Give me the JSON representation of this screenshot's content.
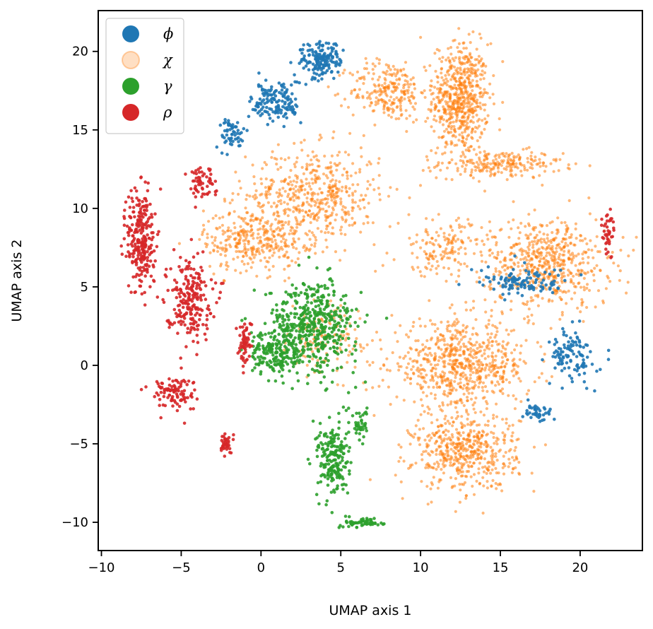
{
  "chart_data": {
    "type": "scatter",
    "xlabel": "UMAP axis 1",
    "ylabel": "UMAP axis 2",
    "xlim": [
      -10.2,
      23.9
    ],
    "ylim": [
      -11.8,
      22.6
    ],
    "xticks": [
      -10,
      -5,
      0,
      5,
      10,
      15,
      20
    ],
    "yticks": [
      -10,
      -5,
      0,
      5,
      10,
      15,
      20
    ],
    "xtick_labels": [
      "−10",
      "−5",
      "0",
      "5",
      "10",
      "15",
      "20"
    ],
    "ytick_labels": [
      "−10",
      "−5",
      "0",
      "5",
      "10",
      "15",
      "20"
    ],
    "grid": false,
    "legend": {
      "placement": "top-left"
    },
    "series": [
      {
        "name": "ϕ",
        "color": "#1f77b4",
        "clusters": [
          {
            "center": [
              3.8,
              19.4
            ],
            "spread": [
              1.2,
              1.1
            ],
            "points": 160
          },
          {
            "center": [
              1.0,
              16.8
            ],
            "spread": [
              1.4,
              1.3
            ],
            "points": 150
          },
          {
            "center": [
              -1.8,
              14.8
            ],
            "spread": [
              0.8,
              0.9
            ],
            "points": 60
          },
          {
            "center": [
              16.5,
              5.3
            ],
            "spread": [
              2.5,
              0.8
            ],
            "points": 110
          },
          {
            "center": [
              19.5,
              0.5
            ],
            "spread": [
              1.3,
              1.6
            ],
            "points": 110
          },
          {
            "center": [
              17.2,
              -3.0
            ],
            "spread": [
              1.0,
              0.5
            ],
            "points": 40
          }
        ]
      },
      {
        "name": "χ",
        "color": "#ff7f0e",
        "clusters": [
          {
            "center": [
              12.5,
              17.0
            ],
            "spread": [
              1.6,
              3.2
            ],
            "points": 600
          },
          {
            "center": [
              15.0,
              12.8
            ],
            "spread": [
              3.5,
              0.8
            ],
            "points": 220
          },
          {
            "center": [
              8.0,
              17.5
            ],
            "spread": [
              2.2,
              1.8
            ],
            "points": 240
          },
          {
            "center": [
              3.3,
              10.8
            ],
            "spread": [
              3.8,
              2.8
            ],
            "points": 520
          },
          {
            "center": [
              -0.5,
              8.0
            ],
            "spread": [
              2.8,
              1.8
            ],
            "points": 320
          },
          {
            "center": [
              18.0,
              6.5
            ],
            "spread": [
              3.5,
              2.6
            ],
            "points": 560
          },
          {
            "center": [
              11.5,
              7.5
            ],
            "spread": [
              2.6,
              1.6
            ],
            "points": 160
          },
          {
            "center": [
              12.5,
              0.0
            ],
            "spread": [
              4.0,
              2.5
            ],
            "points": 700
          },
          {
            "center": [
              12.8,
              -5.5
            ],
            "spread": [
              3.0,
              2.2
            ],
            "points": 500
          },
          {
            "center": [
              4.0,
              1.5
            ],
            "spread": [
              2.0,
              2.0
            ],
            "points": 120
          }
        ]
      },
      {
        "name": "γ",
        "color": "#2ca02c",
        "clusters": [
          {
            "center": [
              3.2,
              2.5
            ],
            "spread": [
              2.6,
              2.6
            ],
            "points": 500
          },
          {
            "center": [
              0.8,
              0.8
            ],
            "spread": [
              1.4,
              1.2
            ],
            "points": 160
          },
          {
            "center": [
              4.5,
              -6.0
            ],
            "spread": [
              0.9,
              2.2
            ],
            "points": 200
          },
          {
            "center": [
              6.5,
              -10.0
            ],
            "spread": [
              1.2,
              0.3
            ],
            "points": 60
          },
          {
            "center": [
              6.2,
              -3.8
            ],
            "spread": [
              0.4,
              0.9
            ],
            "points": 40
          }
        ]
      },
      {
        "name": "ρ",
        "color": "#d62728",
        "clusters": [
          {
            "center": [
              -7.5,
              8.0
            ],
            "spread": [
              0.8,
              3.2
            ],
            "points": 260
          },
          {
            "center": [
              -4.5,
              4.3
            ],
            "spread": [
              1.3,
              2.3
            ],
            "points": 220
          },
          {
            "center": [
              -3.8,
              11.8
            ],
            "spread": [
              0.8,
              1.0
            ],
            "points": 60
          },
          {
            "center": [
              -5.5,
              -1.8
            ],
            "spread": [
              1.3,
              1.0
            ],
            "points": 100
          },
          {
            "center": [
              -1.0,
              1.5
            ],
            "spread": [
              0.4,
              1.3
            ],
            "points": 60
          },
          {
            "center": [
              -2.2,
              -5.0
            ],
            "spread": [
              0.4,
              0.6
            ],
            "points": 40
          },
          {
            "center": [
              21.7,
              8.5
            ],
            "spread": [
              0.4,
              1.3
            ],
            "points": 40
          }
        ]
      }
    ]
  }
}
